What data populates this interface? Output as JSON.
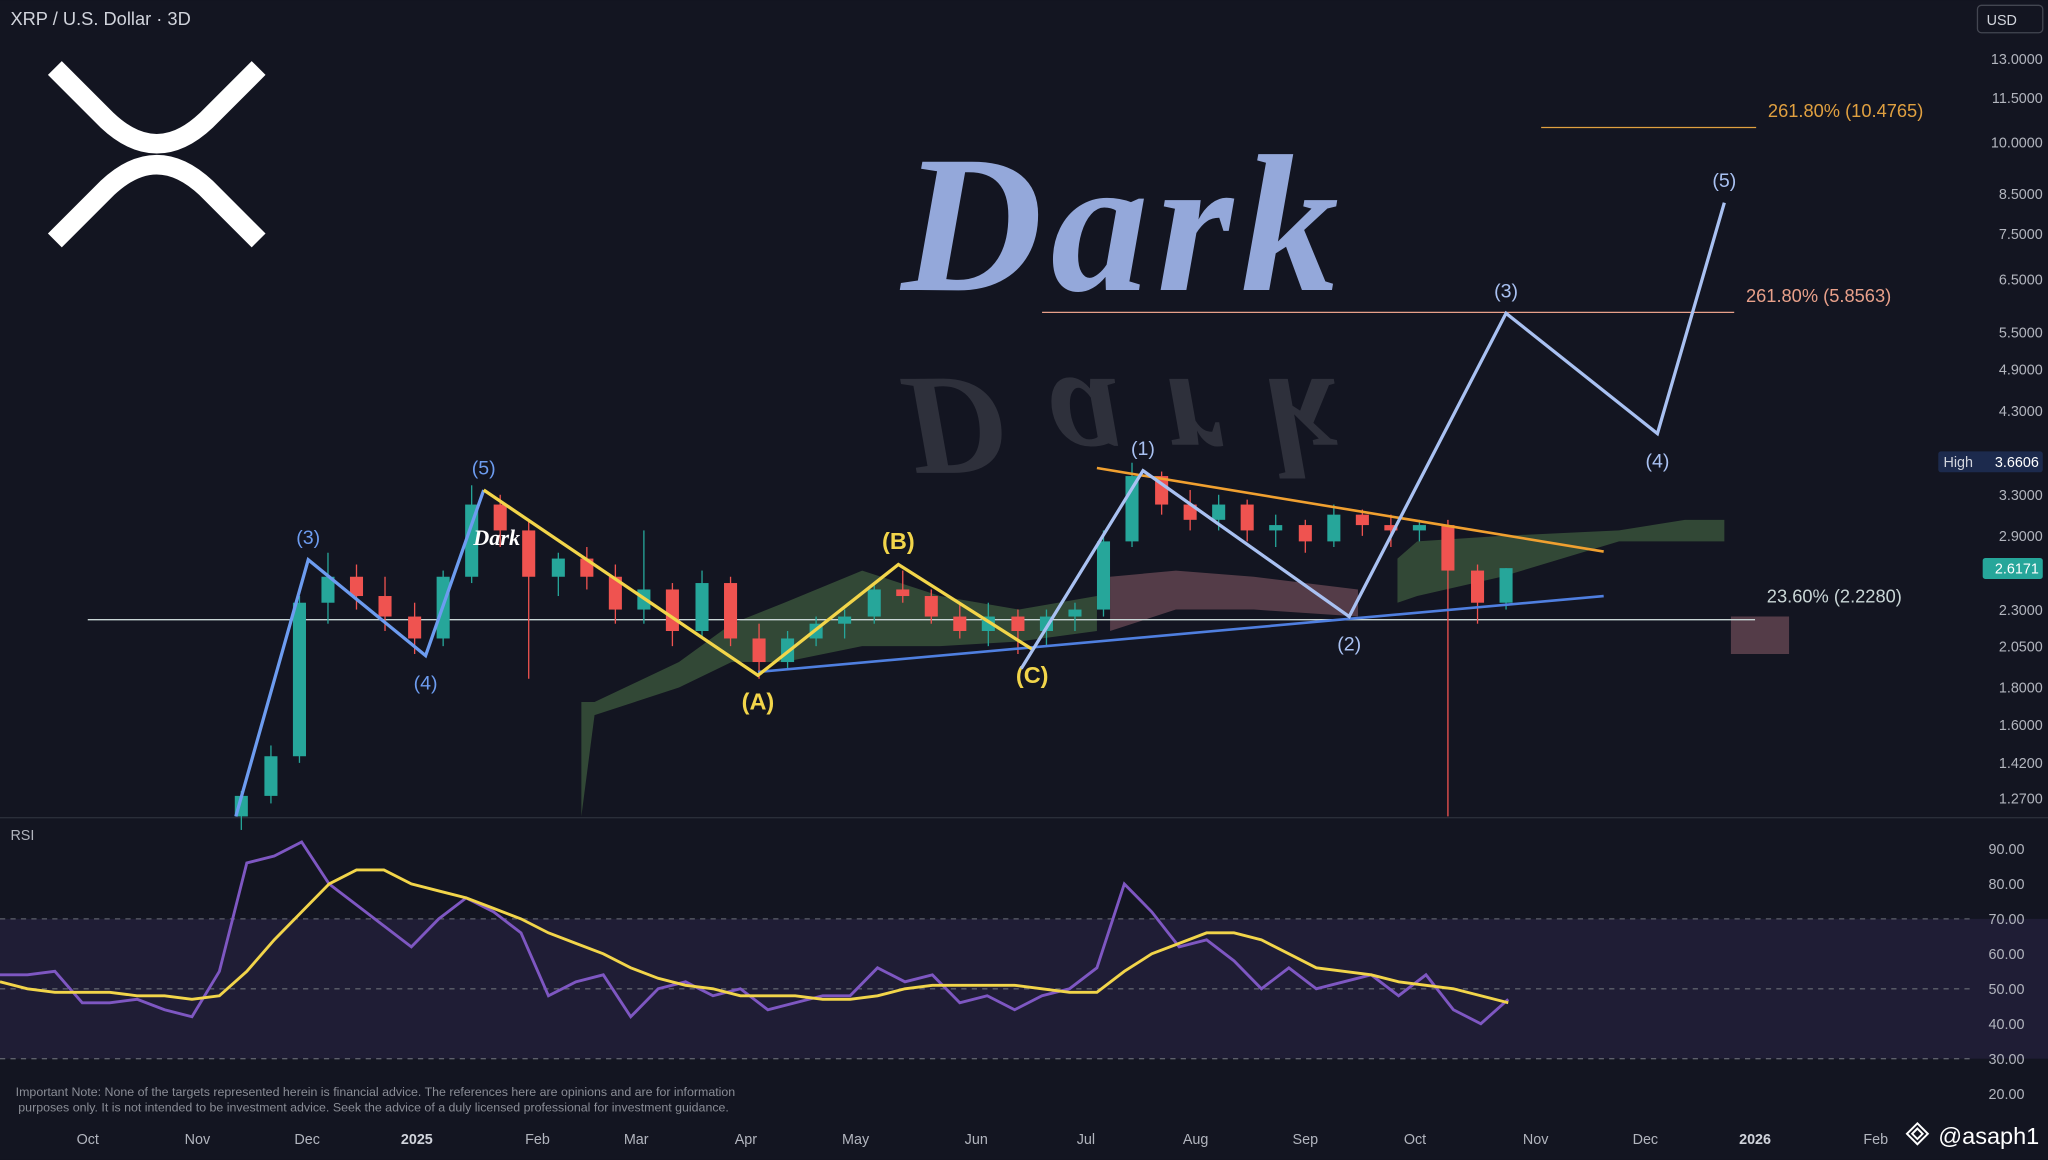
{
  "header": {
    "title": "XRP / U.S. Dollar · 3D",
    "currency": "USD",
    "watermark": "Dark",
    "author": "@asaph1",
    "note": [
      "Important Note: None of the targets represented herein is financial advice. The references here are opinions and are for information",
      "purposes only. It is not intended to be investment advice. Seek the advice of a duly licensed professional for investment guidance."
    ]
  },
  "chart_data": [
    {
      "type": "candlestick",
      "log_scale": true,
      "grid": false,
      "xlim": [
        -0.8,
        17.18
      ],
      "xticks": [
        {
          "value": 0,
          "label": "Oct"
        },
        {
          "value": 1.0,
          "label": "Nov"
        },
        {
          "value": 2.0,
          "label": "Dec"
        },
        {
          "value": 3.0,
          "label": "2025"
        },
        {
          "value": 4.1,
          "label": "Feb"
        },
        {
          "value": 5.0,
          "label": "Mar"
        },
        {
          "value": 6.0,
          "label": "Apr"
        },
        {
          "value": 7.0,
          "label": "May"
        },
        {
          "value": 8.1,
          "label": "Jun"
        },
        {
          "value": 9.1,
          "label": "Jul"
        },
        {
          "value": 10.1,
          "label": "Aug"
        },
        {
          "value": 11.1,
          "label": "Sep"
        },
        {
          "value": 12.1,
          "label": "Oct"
        },
        {
          "value": 13.2,
          "label": "Nov"
        },
        {
          "value": 14.2,
          "label": "Dec"
        },
        {
          "value": 15.2,
          "label": "2026"
        },
        {
          "value": 16.3,
          "label": "Feb"
        }
      ],
      "ylim": [
        1.2,
        15.64
      ],
      "yticks": [
        {
          "value": 13,
          "label": "13.0000"
        },
        {
          "value": 11.5,
          "label": "11.5000"
        },
        {
          "value": 10,
          "label": "10.0000"
        },
        {
          "value": 8.5,
          "label": "8.5000"
        },
        {
          "value": 7.5,
          "label": "7.5000"
        },
        {
          "value": 6.5,
          "label": "6.5000"
        },
        {
          "value": 5.5,
          "label": "5.5000"
        },
        {
          "value": 4.9,
          "label": "4.9000"
        },
        {
          "value": 4.3,
          "label": "4.3000"
        },
        {
          "value": 3.3,
          "label": "3.3000"
        },
        {
          "value": 2.9,
          "label": "2.9000"
        },
        {
          "value": 2.3,
          "label": "2.3000"
        },
        {
          "value": 2.05,
          "label": "2.0500"
        },
        {
          "value": 1.8,
          "label": "1.8000"
        },
        {
          "value": 1.6,
          "label": "1.6000"
        },
        {
          "value": 1.42,
          "label": "1.4200"
        },
        {
          "value": 1.27,
          "label": "1.2700"
        }
      ],
      "up_color": "#26a69a",
      "down_color": "#ef5350",
      "candles": {
        "x": [
          1.4,
          1.67,
          1.93,
          2.19,
          2.45,
          2.71,
          2.98,
          3.24,
          3.5,
          3.76,
          4.02,
          4.29,
          4.55,
          4.81,
          5.07,
          5.33,
          5.6,
          5.86,
          6.12,
          6.38,
          6.64,
          6.9,
          7.17,
          7.43,
          7.69,
          7.95,
          8.21,
          8.48,
          8.74,
          9.0,
          9.26,
          9.52,
          9.79,
          10.05,
          10.31,
          10.57,
          10.83,
          11.1,
          11.36,
          11.62,
          11.88,
          12.14,
          12.4,
          12.67,
          12.93
        ],
        "open": [
          1.2,
          1.28,
          1.45,
          2.35,
          2.55,
          2.4,
          2.25,
          2.1,
          2.55,
          3.2,
          2.95,
          2.55,
          2.7,
          2.55,
          2.3,
          2.45,
          2.15,
          2.5,
          2.1,
          1.95,
          2.1,
          2.2,
          2.25,
          2.45,
          2.4,
          2.25,
          2.15,
          2.25,
          2.15,
          2.25,
          2.3,
          2.85,
          3.5,
          3.2,
          3.05,
          3.2,
          2.95,
          3.0,
          2.85,
          3.1,
          3.0,
          2.95,
          3.0,
          2.6,
          2.35
        ],
        "high": [
          1.3,
          1.5,
          2.4,
          2.75,
          2.65,
          2.55,
          2.35,
          2.6,
          3.4,
          3.3,
          3.05,
          2.75,
          2.8,
          2.65,
          2.95,
          2.5,
          2.6,
          2.55,
          2.2,
          2.15,
          2.25,
          2.3,
          2.5,
          2.6,
          2.45,
          2.35,
          2.35,
          2.3,
          2.3,
          2.35,
          2.95,
          3.65,
          3.55,
          3.35,
          3.3,
          3.25,
          3.1,
          3.05,
          3.2,
          3.15,
          3.1,
          3.05,
          3.05,
          2.65,
          2.62
        ],
        "low": [
          1.15,
          1.25,
          1.42,
          2.2,
          2.3,
          2.15,
          2.0,
          2.05,
          2.5,
          2.8,
          1.85,
          2.4,
          2.45,
          2.2,
          2.2,
          2.05,
          2.1,
          2.05,
          1.85,
          1.9,
          2.05,
          2.1,
          2.2,
          2.35,
          2.2,
          2.1,
          2.05,
          2.0,
          2.05,
          2.15,
          2.25,
          2.8,
          3.1,
          2.95,
          2.95,
          2.85,
          2.8,
          2.75,
          2.8,
          2.9,
          2.8,
          2.85,
          1.2,
          2.2,
          2.3
        ],
        "close": [
          1.28,
          1.45,
          2.35,
          2.55,
          2.4,
          2.25,
          2.1,
          2.55,
          3.2,
          2.95,
          2.55,
          2.7,
          2.55,
          2.3,
          2.45,
          2.15,
          2.5,
          2.1,
          1.95,
          2.1,
          2.2,
          2.25,
          2.45,
          2.4,
          2.25,
          2.15,
          2.25,
          2.15,
          2.25,
          2.3,
          2.85,
          3.5,
          3.2,
          3.05,
          3.2,
          2.95,
          3.0,
          2.85,
          3.1,
          3.0,
          2.95,
          3.0,
          2.6,
          2.35,
          2.62
        ]
      },
      "clouds": [
        {
          "color": "#3d5a3e",
          "x": [
            4.5,
            4.62,
            5.39,
            5.87,
            6.35,
            7.06,
            7.77,
            8.49,
            9.2
          ],
          "upper": [
            1.72,
            1.72,
            1.95,
            2.2,
            2.35,
            2.6,
            2.4,
            2.3,
            2.4
          ],
          "lower": [
            1.2,
            1.65,
            1.8,
            1.95,
            1.95,
            2.05,
            2.05,
            2.08,
            2.15
          ]
        },
        {
          "color": "#6b4a55",
          "x": [
            9.32,
            9.92,
            10.63,
            11.58
          ],
          "upper": [
            2.55,
            2.6,
            2.55,
            2.45
          ],
          "lower": [
            2.15,
            2.3,
            2.3,
            2.25
          ]
        },
        {
          "color": "#3d5a3e",
          "x": [
            11.94,
            12.12,
            12.89,
            13.96,
            14.56,
            14.92
          ],
          "upper": [
            2.7,
            2.85,
            2.9,
            2.95,
            3.05,
            3.05
          ],
          "lower": [
            2.35,
            2.4,
            2.55,
            2.85,
            2.85,
            2.85
          ]
        },
        {
          "color": "#6b4a55",
          "x": [
            14.98,
            15.51
          ],
          "upper": [
            2.25,
            2.25
          ],
          "lower": [
            2.0,
            2.0
          ]
        }
      ],
      "levels": [
        {
          "label": "261.80% (10.4765)",
          "value": 10.4765,
          "color": "#e0a040",
          "x": [
            13.25,
            15.21
          ]
        },
        {
          "label": "261.80% (5.8563)",
          "value": 5.8563,
          "color": "#e8a08a",
          "x": [
            8.7,
            15.01
          ]
        },
        {
          "label": "23.60% (2.2280)",
          "value": 2.228,
          "color": "#c9d6d6",
          "x": [
            0,
            15.2
          ]
        }
      ],
      "trendlines": [
        {
          "color": "#f0a030",
          "x": [
            9.2,
            13.82
          ],
          "y": [
            3.59,
            2.76
          ]
        },
        {
          "color": "#4f7fe0",
          "x": [
            6.11,
            13.82
          ],
          "y": [
            1.89,
            2.4
          ]
        }
      ],
      "waves": [
        {
          "color": "#6d9cf0",
          "x": [
            1.35,
            2.01,
            3.08,
            3.61
          ],
          "y": [
            1.2,
            2.69,
            1.99,
            3.35
          ],
          "labels": [
            null,
            "(3)",
            "(4)",
            "(5)"
          ]
        },
        {
          "color": "#f2d54a",
          "x": [
            3.61,
            6.11,
            7.39,
            8.61
          ],
          "y": [
            3.35,
            1.87,
            2.65,
            2.03
          ],
          "labels": [
            null,
            "(A)",
            "(B)",
            "(C)"
          ]
        },
        {
          "color": "#a9c1f2",
          "x": [
            8.51,
            9.62,
            11.5,
            12.93,
            14.31,
            14.92
          ],
          "y": [
            1.91,
            3.56,
            2.25,
            5.84,
            4.0,
            8.27
          ],
          "labels": [
            null,
            "(1)",
            "(2)",
            "(3)",
            "(4)",
            "(5)"
          ]
        }
      ],
      "price_tags": [
        {
          "label": "High",
          "value": 3.6606,
          "color": "#1c2a4d"
        },
        {
          "value": 2.6171,
          "color": "#26a69a"
        }
      ]
    },
    {
      "type": "line",
      "title": "RSI",
      "xlim": [
        -0.8,
        17.18
      ],
      "ylim": [
        11.5,
        98.2
      ],
      "yticks": [
        {
          "value": 90,
          "label": "90.00"
        },
        {
          "value": 80,
          "label": "80.00"
        },
        {
          "value": 70,
          "label": "70.00"
        },
        {
          "value": 60,
          "label": "60.00"
        },
        {
          "value": 50,
          "label": "50.00"
        },
        {
          "value": 40,
          "label": "40.00"
        },
        {
          "value": 30,
          "label": "30.00"
        },
        {
          "value": 20,
          "label": "20.00"
        }
      ],
      "band": [
        30,
        70
      ],
      "dashed": [
        70,
        50,
        30
      ],
      "x": [
        -0.8,
        -0.55,
        -0.3,
        -0.05,
        0.2,
        0.45,
        0.7,
        0.95,
        1.2,
        1.45,
        1.7,
        1.95,
        2.2,
        2.45,
        2.7,
        2.95,
        3.2,
        3.45,
        3.7,
        3.95,
        4.2,
        4.45,
        4.7,
        4.95,
        5.2,
        5.45,
        5.7,
        5.95,
        6.2,
        6.45,
        6.7,
        6.95,
        7.2,
        7.45,
        7.7,
        7.95,
        8.2,
        8.45,
        8.7,
        8.95,
        9.2,
        9.45,
        9.7,
        9.95,
        10.2,
        10.45,
        10.7,
        10.95,
        11.2,
        11.45,
        11.7,
        11.95,
        12.2,
        12.45,
        12.7,
        12.95
      ],
      "series": [
        {
          "color": "#7e57c2",
          "values": [
            54,
            54,
            55,
            46,
            46,
            47,
            44,
            42,
            55,
            86,
            88,
            92,
            80,
            74,
            68,
            62,
            70,
            76,
            72,
            66,
            48,
            52,
            54,
            42,
            50,
            52,
            48,
            50,
            44,
            46,
            48,
            48,
            56,
            52,
            54,
            46,
            48,
            44,
            48,
            50,
            56,
            80,
            72,
            62,
            64,
            58,
            50,
            56,
            50,
            52,
            54,
            48,
            54,
            44,
            40,
            47
          ]
        },
        {
          "color": "#f2d54a",
          "values": [
            52,
            50,
            49,
            49,
            49,
            48,
            48,
            47,
            48,
            55,
            64,
            72,
            80,
            84,
            84,
            80,
            78,
            76,
            73,
            70,
            66,
            63,
            60,
            56,
            53,
            51,
            50,
            48,
            48,
            48,
            47,
            47,
            48,
            50,
            51,
            51,
            51,
            51,
            50,
            49,
            49,
            55,
            60,
            63,
            66,
            66,
            64,
            60,
            56,
            55,
            54,
            52,
            51,
            50,
            48,
            46
          ]
        }
      ]
    }
  ]
}
